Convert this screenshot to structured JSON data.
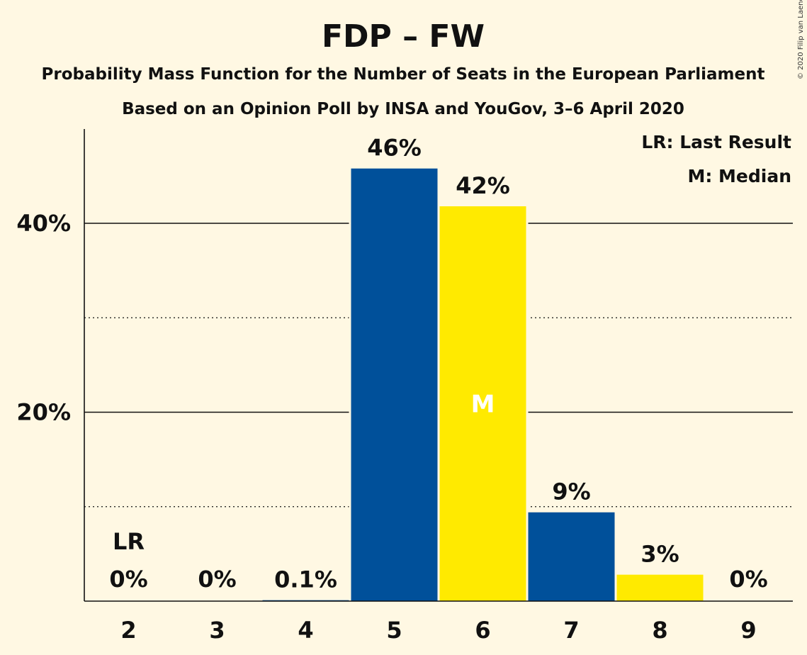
{
  "chart_data": {
    "type": "bar",
    "title": "FDP – FW",
    "subtitle_1": "Probability Mass Function for the Number of Seats in the European Parliament",
    "subtitle_2": "Based on an Opinion Poll by INSA and YouGov, 3–6 April 2020",
    "copyright": "© 2020 Filip van Laenen",
    "categories": [
      "2",
      "3",
      "4",
      "5",
      "6",
      "7",
      "8",
      "9"
    ],
    "values": [
      0,
      0,
      0.1,
      45.8,
      41.8,
      9.4,
      2.8,
      0
    ],
    "labels": [
      "0%",
      "0%",
      "0.1%",
      "46%",
      "42%",
      "9%",
      "3%",
      "0%"
    ],
    "bar_colors": [
      "#00509A",
      "#FFEA00",
      "#00509A",
      "#00509A",
      "#FFEA00",
      "#00509A",
      "#FFEA00",
      "#00509A"
    ],
    "ylim": [
      0,
      50
    ],
    "yticks": [
      {
        "value": 20,
        "label": "20%"
      },
      {
        "value": 40,
        "label": "40%"
      }
    ],
    "minor_gridlines": [
      10,
      30
    ],
    "last_result": {
      "category": "2",
      "label": "LR"
    },
    "median": {
      "category": "6",
      "label": "M"
    },
    "legend": [
      "LR: Last Result",
      "M: Median"
    ],
    "legend_position": "top-right",
    "grid": true
  }
}
